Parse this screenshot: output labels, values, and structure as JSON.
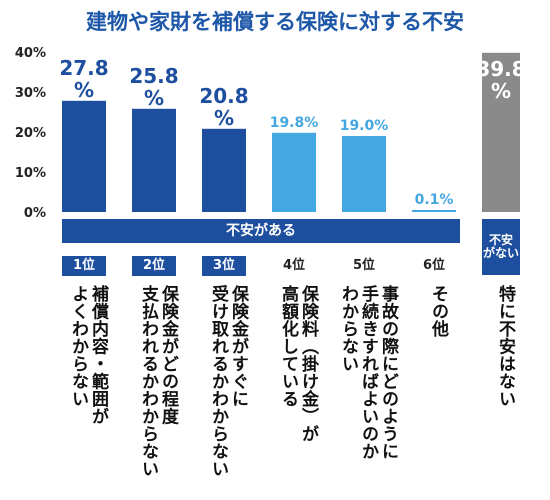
{
  "title": "建物や家財を補償する保険に対する不安",
  "chart_data": {
    "type": "bar",
    "ylim": [
      0,
      40
    ],
    "yticks": [
      "0%",
      "10%",
      "20%",
      "30%",
      "40%"
    ],
    "grid": false,
    "group_label": "不安がある",
    "none_group_label_lines": [
      "不安",
      "がない"
    ],
    "bars": [
      {
        "rank": "1位",
        "value": 27.8,
        "value_label": "27.8",
        "unit": "%",
        "label_lines": [
          "補償内容・範囲が",
          "よくわからない"
        ],
        "color": "#1d4f9e",
        "top3": true
      },
      {
        "rank": "2位",
        "value": 25.8,
        "value_label": "25.8",
        "unit": "%",
        "label_lines": [
          "保険金がどの程度",
          "支払われるかわからない"
        ],
        "color": "#1d4f9e",
        "top3": true
      },
      {
        "rank": "3位",
        "value": 20.8,
        "value_label": "20.8",
        "unit": "%",
        "label_lines": [
          "保険金がすぐに",
          "受け取れるかわからない"
        ],
        "color": "#1d4f9e",
        "top3": true
      },
      {
        "rank": "4位",
        "value": 19.8,
        "value_label": "19.8%",
        "unit": "",
        "label_lines": [
          "保険料（掛け金）が",
          "高額化している"
        ],
        "color": "#45a7e2",
        "top3": false
      },
      {
        "rank": "5位",
        "value": 19.0,
        "value_label": "19.0%",
        "unit": "",
        "label_lines": [
          "事故の際にどのように",
          "手続きすればよいのか",
          "わからない"
        ],
        "color": "#45a7e2",
        "top3": false
      },
      {
        "rank": "6位",
        "value": 0.1,
        "value_label": "0.1%",
        "unit": "",
        "label_lines": [
          "その他"
        ],
        "color": "#45a7e2",
        "top3": false
      }
    ],
    "none_bar": {
      "value": 39.8,
      "value_label": "39.8",
      "unit": "%",
      "label_lines": [
        "特に不安はない"
      ],
      "color": "#8a8a8a"
    }
  }
}
